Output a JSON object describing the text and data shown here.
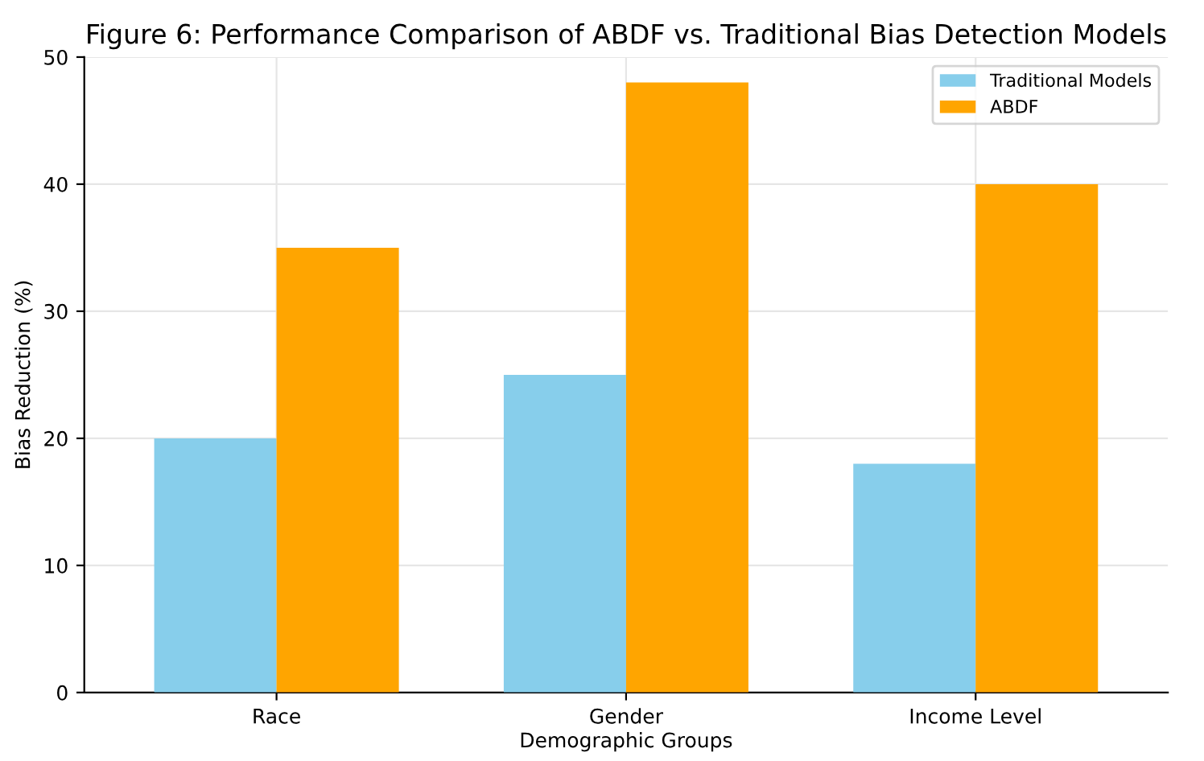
{
  "chart_data": {
    "type": "bar",
    "title": "Figure 6: Performance Comparison of ABDF vs. Traditional Bias Detection Models",
    "xlabel": "Demographic Groups",
    "ylabel": "Bias Reduction (%)",
    "categories": [
      "Race",
      "Gender",
      "Income Level"
    ],
    "series": [
      {
        "name": "Traditional Models",
        "color": "#87ceeb",
        "values": [
          20,
          25,
          18
        ]
      },
      {
        "name": "ABDF",
        "color": "#ffa500",
        "values": [
          35,
          48,
          40
        ]
      }
    ],
    "ylim": [
      0,
      50
    ],
    "yticks": [
      0,
      10,
      20,
      30,
      40,
      50
    ],
    "grid": true,
    "legend": "top right"
  }
}
